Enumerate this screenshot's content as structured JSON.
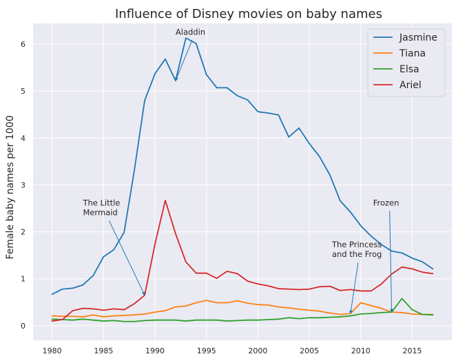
{
  "chart_data": {
    "type": "line",
    "title": "Influence of Disney movies on baby names",
    "xlabel": "",
    "ylabel": "Female baby names per 1000",
    "xlim": [
      1978.15,
      2018.85
    ],
    "ylim": [
      -0.31,
      6.44
    ],
    "x_ticks": [
      1980,
      1985,
      1990,
      1995,
      2000,
      2005,
      2010,
      2015
    ],
    "y_ticks": [
      0,
      1,
      2,
      3,
      4,
      5,
      6
    ],
    "grid": true,
    "legend_position": "top-right",
    "x": [
      1980,
      1981,
      1982,
      1983,
      1984,
      1985,
      1986,
      1987,
      1988,
      1989,
      1990,
      1991,
      1992,
      1993,
      1994,
      1995,
      1996,
      1997,
      1998,
      1999,
      2000,
      2001,
      2002,
      2003,
      2004,
      2005,
      2006,
      2007,
      2008,
      2009,
      2010,
      2011,
      2012,
      2013,
      2014,
      2015,
      2016,
      2017
    ],
    "series": [
      {
        "name": "Jasmine",
        "color": "#1f77b4",
        "values": [
          0.67,
          0.78,
          0.8,
          0.87,
          1.07,
          1.47,
          1.62,
          1.99,
          3.32,
          4.8,
          5.37,
          5.68,
          5.22,
          6.13,
          6.01,
          5.35,
          5.07,
          5.07,
          4.9,
          4.81,
          4.56,
          4.53,
          4.49,
          4.02,
          4.21,
          3.88,
          3.6,
          3.21,
          2.66,
          2.42,
          2.13,
          1.91,
          1.73,
          1.59,
          1.55,
          1.44,
          1.36,
          1.21
        ]
      },
      {
        "name": "Tiana",
        "color": "#ff7f0e",
        "values": [
          0.21,
          0.2,
          0.2,
          0.19,
          0.23,
          0.19,
          0.21,
          0.22,
          0.23,
          0.25,
          0.29,
          0.32,
          0.4,
          0.42,
          0.49,
          0.54,
          0.49,
          0.49,
          0.53,
          0.48,
          0.45,
          0.44,
          0.4,
          0.38,
          0.35,
          0.33,
          0.31,
          0.27,
          0.24,
          0.26,
          0.49,
          0.43,
          0.37,
          0.29,
          0.28,
          0.25,
          0.24,
          0.24
        ]
      },
      {
        "name": "Elsa",
        "color": "#2ca02c",
        "values": [
          0.14,
          0.13,
          0.12,
          0.14,
          0.12,
          0.1,
          0.11,
          0.09,
          0.09,
          0.11,
          0.12,
          0.12,
          0.12,
          0.1,
          0.12,
          0.12,
          0.12,
          0.1,
          0.11,
          0.12,
          0.12,
          0.13,
          0.14,
          0.17,
          0.15,
          0.17,
          0.17,
          0.18,
          0.19,
          0.21,
          0.25,
          0.26,
          0.28,
          0.29,
          0.58,
          0.34,
          0.24,
          0.23
        ]
      },
      {
        "name": "Ariel",
        "color": "#d62728",
        "values": [
          0.1,
          0.13,
          0.32,
          0.37,
          0.36,
          0.33,
          0.36,
          0.34,
          0.47,
          0.65,
          1.74,
          2.67,
          1.96,
          1.36,
          1.12,
          1.12,
          1.01,
          1.16,
          1.11,
          0.95,
          0.89,
          0.85,
          0.79,
          0.78,
          0.77,
          0.78,
          0.83,
          0.84,
          0.75,
          0.77,
          0.74,
          0.74,
          0.89,
          1.1,
          1.25,
          1.21,
          1.14,
          1.11
        ]
      }
    ],
    "annotations": [
      {
        "lines": [
          "Aladdin"
        ],
        "text_x": 1992,
        "text_y": 6.2,
        "target_x": 1992,
        "target_y": 5.22
      },
      {
        "lines": [
          "The Little",
          "Mermaid"
        ],
        "text_x": 1983,
        "text_y": 2.56,
        "target_x": 1989,
        "target_y": 0.65
      },
      {
        "lines": [
          "The Princess",
          "and the Frog"
        ],
        "text_x": 2007.2,
        "text_y": 1.67,
        "target_x": 2009,
        "target_y": 0.26
      },
      {
        "lines": [
          "Frozen"
        ],
        "text_x": 2011.2,
        "text_y": 2.56,
        "target_x": 2013,
        "target_y": 0.29
      }
    ]
  }
}
